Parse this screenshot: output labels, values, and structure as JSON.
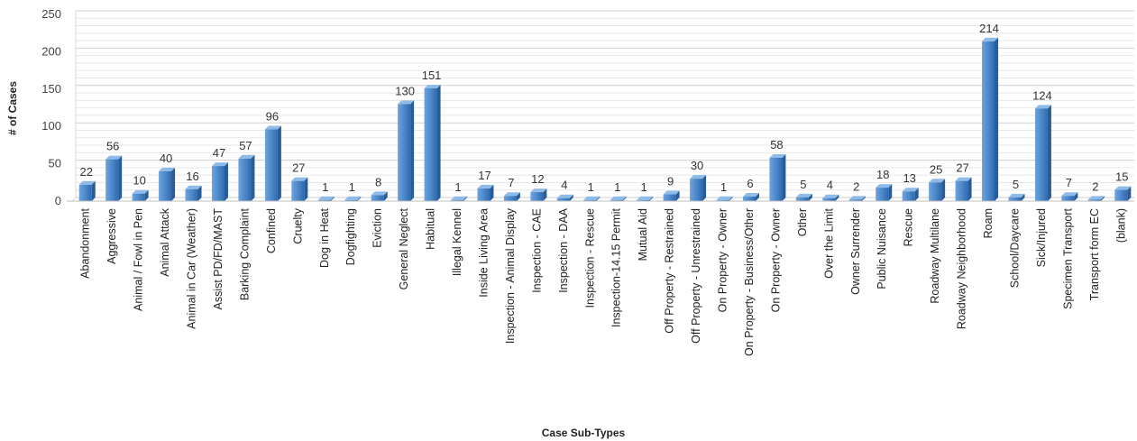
{
  "chart_data": {
    "type": "bar",
    "xlabel": "Case Sub-Types",
    "ylabel": "# of Cases",
    "ylim": [
      0,
      250
    ],
    "yticks": [
      0,
      50,
      100,
      150,
      200,
      250
    ],
    "grid": true,
    "bar_color": "#4a86c8",
    "categories": [
      "Abandonment",
      "Aggressive",
      "Animal / Fowl in Pen",
      "Animal Attack",
      "Animal in Car (Weather)",
      "Assist PD/FD/MAST",
      "Barking Complaint",
      "Confined",
      "Cruelty",
      "Dog in Heat",
      "Dogfighting",
      "Eviction",
      "General Neglect",
      "Habitual",
      "Illegal Kennel",
      "Inside Living Area",
      "Inspection - Animal Display",
      "Inspection - CAE",
      "Inspection - DAA",
      "Inspection - Rescue",
      "Inspection-14.15 Permit",
      "Mutual Aid",
      "Off Property - Restrained",
      "Off Property - Unrestrained",
      "On Property - Owner",
      "On Property - Business/Other",
      "On Property - Owner",
      "Other",
      "Over the Limit",
      "Owner Surrender",
      "Public Nuisance",
      "Rescue",
      "Roadway Multilane",
      "Roadway Neighborhood",
      "Roam",
      "School/Daycare",
      "Sick/Injured",
      "Specimen Transport",
      "Transport form EC",
      "(blank)"
    ],
    "values": [
      22,
      56,
      10,
      40,
      16,
      47,
      57,
      96,
      27,
      1,
      1,
      8,
      130,
      151,
      1,
      17,
      7,
      12,
      4,
      1,
      1,
      1,
      9,
      30,
      1,
      6,
      58,
      5,
      4,
      2,
      18,
      13,
      25,
      27,
      214,
      5,
      124,
      7,
      2,
      15
    ]
  }
}
